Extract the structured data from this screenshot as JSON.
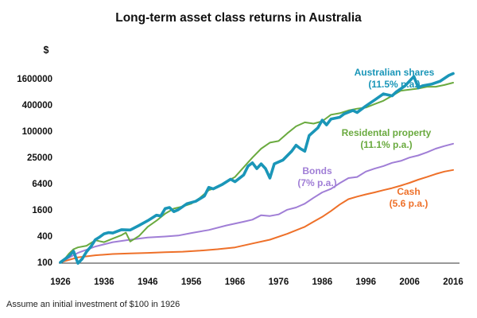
{
  "chart_data": {
    "type": "line",
    "title": "Long-term asset class returns in Australia",
    "y_unit_label": "$",
    "y_scale": "log4",
    "ylim": [
      100,
      2400000
    ],
    "xlim": [
      1926,
      2017
    ],
    "x_ticks": [
      "1926",
      "1936",
      "1946",
      "1956",
      "1966",
      "1976",
      "1986",
      "1996",
      "2006",
      "2016"
    ],
    "y_ticks": [
      "100",
      "400",
      "1600",
      "6400",
      "25000",
      "100000",
      "400000",
      "1600000"
    ],
    "series": [
      {
        "name": "Australian shares",
        "annotation": "(11.5% p.a.)",
        "color": "#1a96b8",
        "emphasis": true,
        "x": [
          1926,
          1928,
          1929,
          1930,
          1931,
          1932,
          1933,
          1934,
          1935,
          1936,
          1937,
          1938,
          1940,
          1942,
          1944,
          1946,
          1948,
          1949,
          1950,
          1951,
          1952,
          1953,
          1955,
          1957,
          1959,
          1960,
          1961,
          1963,
          1965,
          1966,
          1968,
          1969,
          1970,
          1971,
          1972,
          1973,
          1974,
          1975,
          1977,
          1979,
          1980,
          1981,
          1982,
          1983,
          1985,
          1986,
          1987,
          1988,
          1990,
          1991,
          1993,
          1994,
          1996,
          1998,
          2000,
          2002,
          2003,
          2005,
          2007,
          2008,
          2009,
          2011,
          2013,
          2015,
          2016
        ],
        "values": [
          100,
          140,
          180,
          95,
          120,
          175,
          230,
          330,
          380,
          450,
          480,
          470,
          560,
          550,
          700,
          900,
          1200,
          1150,
          1700,
          1800,
          1450,
          1600,
          2200,
          2500,
          3300,
          5200,
          4800,
          6000,
          8000,
          7000,
          10000,
          16000,
          19000,
          14000,
          18000,
          14000,
          8500,
          18000,
          22000,
          35000,
          48000,
          40000,
          35000,
          80000,
          120000,
          180000,
          140000,
          190000,
          210000,
          250000,
          300000,
          270000,
          380000,
          520000,
          720000,
          650000,
          800000,
          1100000,
          1800000,
          1000000,
          1100000,
          1200000,
          1400000,
          1900000,
          2100000
        ]
      },
      {
        "name": "Residental property",
        "annotation": "(11.1% p.a.)",
        "color": "#6aaa3f",
        "x": [
          1926,
          1927,
          1928,
          1929,
          1930,
          1932,
          1934,
          1936,
          1938,
          1940,
          1941,
          1942,
          1944,
          1946,
          1948,
          1950,
          1952,
          1954,
          1956,
          1958,
          1960,
          1962,
          1964,
          1966,
          1968,
          1970,
          1972,
          1974,
          1976,
          1978,
          1980,
          1982,
          1984,
          1986,
          1988,
          1990,
          1992,
          1994,
          1996,
          1998,
          2000,
          2002,
          2004,
          2006,
          2008,
          2010,
          2012,
          2014,
          2016
        ],
        "values": [
          100,
          120,
          160,
          200,
          220,
          240,
          320,
          290,
          350,
          420,
          480,
          300,
          400,
          650,
          900,
          1300,
          1700,
          1900,
          2200,
          3000,
          4500,
          5200,
          7000,
          9000,
          15000,
          25000,
          40000,
          55000,
          60000,
          90000,
          130000,
          160000,
          150000,
          170000,
          240000,
          260000,
          300000,
          330000,
          350000,
          420000,
          500000,
          650000,
          850000,
          900000,
          950000,
          1050000,
          1050000,
          1150000,
          1300000
        ]
      },
      {
        "name": "Bonds",
        "annotation": "(7% p.a.)",
        "color": "#a07ed6",
        "x": [
          1926,
          1930,
          1934,
          1938,
          1942,
          1946,
          1950,
          1953,
          1956,
          1960,
          1964,
          1968,
          1970,
          1972,
          1974,
          1976,
          1978,
          1980,
          1982,
          1984,
          1986,
          1988,
          1990,
          1992,
          1994,
          1996,
          1998,
          2000,
          2002,
          2004,
          2006,
          2008,
          2010,
          2012,
          2014,
          2016
        ],
        "values": [
          100,
          165,
          230,
          290,
          330,
          370,
          390,
          410,
          470,
          550,
          700,
          850,
          950,
          1200,
          1150,
          1250,
          1600,
          1800,
          2200,
          3000,
          4000,
          4800,
          6500,
          8500,
          9000,
          12000,
          14000,
          16000,
          19000,
          21000,
          25000,
          28000,
          33000,
          40000,
          46000,
          52000
        ]
      },
      {
        "name": "Cash",
        "annotation": "(5.6 p.a.)",
        "color": "#ee7029",
        "x": [
          1926,
          1930,
          1934,
          1938,
          1942,
          1946,
          1950,
          1954,
          1958,
          1962,
          1966,
          1970,
          1974,
          1978,
          1982,
          1984,
          1986,
          1988,
          1990,
          1992,
          1994,
          1996,
          1998,
          2000,
          2002,
          2004,
          2006,
          2008,
          2010,
          2012,
          2014,
          2016
        ],
        "values": [
          100,
          130,
          145,
          155,
          160,
          165,
          170,
          175,
          185,
          200,
          220,
          270,
          330,
          450,
          650,
          850,
          1100,
          1500,
          2100,
          2800,
          3200,
          3600,
          4000,
          4500,
          5000,
          5700,
          6600,
          7800,
          9000,
          10500,
          12000,
          13000
        ]
      }
    ]
  },
  "footnote": "Assume an initial investment of $100 in 1926"
}
